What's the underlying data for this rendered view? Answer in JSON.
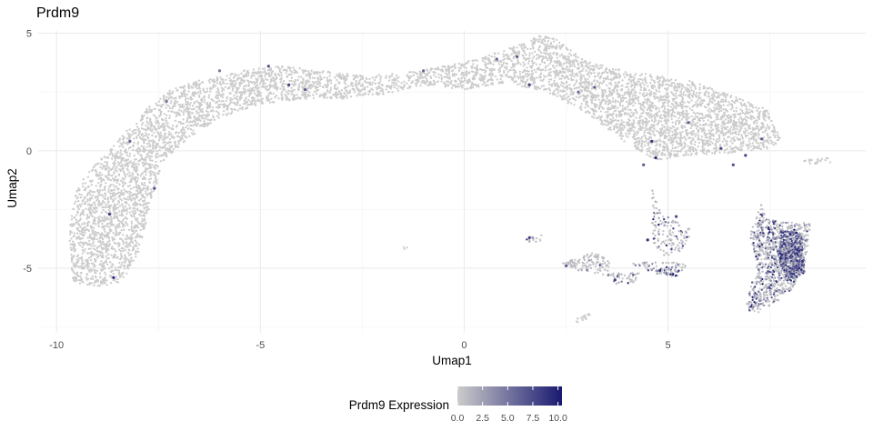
{
  "chart_data": {
    "type": "scatter",
    "title": "Prdm9",
    "xlabel": "Umap1",
    "ylabel": "Umap2",
    "xlim": [
      -10.45,
      9.85
    ],
    "ylim": [
      -7.75,
      5.1
    ],
    "x_ticks": [
      -10,
      -5,
      0,
      5
    ],
    "x_tick_labels": [
      "-10",
      "-5",
      "0",
      "5"
    ],
    "y_ticks": [
      -5,
      0,
      5
    ],
    "y_tick_labels": [
      "-5",
      "0",
      "5"
    ],
    "x_minor_gridlines": [
      -7.5,
      -2.5,
      2.5,
      7.5
    ],
    "y_minor_gridlines": [
      -7.5,
      -2.5,
      2.5
    ],
    "grid": true,
    "legend": {
      "title": "Prdm9 Expression",
      "position": "bottom",
      "type": "colorbar",
      "range": [
        0,
        10.4
      ],
      "tick_values": [
        0,
        2.5,
        5,
        7.5,
        10
      ],
      "tick_labels": [
        "0.0",
        "2.5",
        "5.0",
        "7.5",
        "10.0"
      ],
      "color_low": "#cccccc",
      "color_high": "#191970"
    },
    "colors": {
      "background_point": "#cccccc",
      "expression_low": "#cccccc",
      "expression_high": "#191970",
      "gridline": "#ebebeb"
    },
    "point_regions": [
      {
        "name": "main-arc",
        "points": [
          [
            -9.6,
            -5.6
          ],
          [
            -9.7,
            -3.5
          ],
          [
            -9.5,
            -1.5
          ],
          [
            -9.0,
            -0.5
          ],
          [
            -8.4,
            0.6
          ],
          [
            -7.8,
            1.8
          ],
          [
            -7.2,
            2.6
          ],
          [
            -6.5,
            3.0
          ],
          [
            -5.5,
            3.4
          ],
          [
            -4.5,
            3.6
          ],
          [
            -3.5,
            3.4
          ],
          [
            -2.5,
            3.2
          ],
          [
            -1.5,
            3.3
          ],
          [
            -0.5,
            3.6
          ],
          [
            0.5,
            4.0
          ],
          [
            1.5,
            4.6
          ],
          [
            1.8,
            4.9
          ],
          [
            2.2,
            4.8
          ],
          [
            3.0,
            3.8
          ],
          [
            4.0,
            3.4
          ],
          [
            5.5,
            3.0
          ],
          [
            6.5,
            2.4
          ],
          [
            7.4,
            1.8
          ],
          [
            7.8,
            0.5
          ],
          [
            7.5,
            0.1
          ],
          [
            6.5,
            -0.1
          ],
          [
            5.5,
            -0.2
          ],
          [
            4.7,
            -0.4
          ],
          [
            4.0,
            0.3
          ],
          [
            3.0,
            1.6
          ],
          [
            2.0,
            2.5
          ],
          [
            1.0,
            2.9
          ],
          [
            0.0,
            2.6
          ],
          [
            -1.0,
            2.8
          ],
          [
            -2.0,
            2.4
          ],
          [
            -3.0,
            2.2
          ],
          [
            -4.0,
            2.2
          ],
          [
            -5.0,
            2.0
          ],
          [
            -6.0,
            1.4
          ],
          [
            -6.8,
            0.5
          ],
          [
            -7.4,
            -0.5
          ],
          [
            -7.6,
            -1.8
          ],
          [
            -7.8,
            -3.0
          ],
          [
            -8.0,
            -4.4
          ],
          [
            -8.4,
            -5.6
          ],
          [
            -9.0,
            -5.8
          ]
        ],
        "count": 6500,
        "weight": 0.0
      },
      {
        "name": "right-cluster",
        "points": [
          [
            7.4,
            -2.9
          ],
          [
            7.9,
            -3.0
          ],
          [
            8.5,
            -3.1
          ],
          [
            8.4,
            -4.6
          ],
          [
            8.1,
            -5.8
          ],
          [
            7.5,
            -6.7
          ],
          [
            7.2,
            -6.9
          ],
          [
            6.9,
            -6.8
          ],
          [
            7.0,
            -6.0
          ],
          [
            7.2,
            -4.8
          ],
          [
            7.0,
            -3.6
          ],
          [
            7.3,
            -2.2
          ]
        ],
        "count": 900,
        "weight": 0.35
      },
      {
        "name": "right-cluster-core",
        "points": [
          [
            7.75,
            -3.4
          ],
          [
            8.3,
            -3.5
          ],
          [
            8.35,
            -5.2
          ],
          [
            7.95,
            -5.6
          ],
          [
            7.7,
            -4.6
          ]
        ],
        "count": 500,
        "weight": 0.85
      },
      {
        "name": "mid-cluster-a",
        "points": [
          [
            4.6,
            -1.4
          ],
          [
            4.8,
            -2.6
          ],
          [
            5.3,
            -3.1
          ],
          [
            5.6,
            -3.4
          ],
          [
            5.4,
            -4.2
          ],
          [
            4.9,
            -4.5
          ],
          [
            4.6,
            -3.8
          ]
        ],
        "count": 140,
        "weight": 0.2
      },
      {
        "name": "mid-cluster-b",
        "points": [
          [
            4.1,
            -4.8
          ],
          [
            4.8,
            -4.7
          ],
          [
            5.5,
            -4.8
          ],
          [
            5.2,
            -5.4
          ],
          [
            4.6,
            -5.2
          ]
        ],
        "count": 90,
        "weight": 0.25
      },
      {
        "name": "mid-cluster-c",
        "points": [
          [
            2.4,
            -4.8
          ],
          [
            3.2,
            -4.3
          ],
          [
            3.7,
            -4.8
          ],
          [
            3.5,
            -5.3
          ],
          [
            2.8,
            -5.1
          ]
        ],
        "count": 110,
        "weight": 0.1
      },
      {
        "name": "mid-cluster-d",
        "points": [
          [
            3.5,
            -5.2
          ],
          [
            4.3,
            -5.2
          ],
          [
            4.4,
            -5.6
          ],
          [
            3.7,
            -5.8
          ]
        ],
        "count": 45,
        "weight": 0.3
      },
      {
        "name": "small-cluster-e",
        "points": [
          [
            1.5,
            -3.7
          ],
          [
            1.9,
            -3.6
          ],
          [
            1.9,
            -3.9
          ],
          [
            1.5,
            -3.9
          ]
        ],
        "count": 14,
        "weight": 0.35
      },
      {
        "name": "small-cluster-f",
        "points": [
          [
            2.7,
            -7.2
          ],
          [
            3.1,
            -6.9
          ],
          [
            3.1,
            -7.1
          ],
          [
            2.7,
            -7.4
          ]
        ],
        "count": 18,
        "weight": 0.0
      },
      {
        "name": "small-cluster-g",
        "points": [
          [
            8.3,
            -0.4
          ],
          [
            9.0,
            -0.3
          ],
          [
            9.0,
            -0.5
          ],
          [
            8.3,
            -0.6
          ]
        ],
        "count": 22,
        "weight": 0.0
      },
      {
        "name": "small-cluster-h",
        "points": [
          [
            -1.5,
            -4.1
          ],
          [
            -1.4,
            -4.1
          ],
          [
            -1.4,
            -4.2
          ],
          [
            -1.5,
            -4.2
          ]
        ],
        "count": 3,
        "weight": 0.0
      }
    ],
    "highlighted_points": [
      {
        "x": -8.6,
        "y": -5.4,
        "v": 9.5
      },
      {
        "x": -8.7,
        "y": -2.7,
        "v": 8.5
      },
      {
        "x": -7.6,
        "y": -1.6,
        "v": 7.0
      },
      {
        "x": -8.2,
        "y": 0.4,
        "v": 6.0
      },
      {
        "x": -7.3,
        "y": 2.1,
        "v": 5.0
      },
      {
        "x": -6.0,
        "y": 3.4,
        "v": 5.0
      },
      {
        "x": -4.8,
        "y": 3.6,
        "v": 7.5
      },
      {
        "x": -4.3,
        "y": 2.8,
        "v": 8.0
      },
      {
        "x": -3.9,
        "y": 2.6,
        "v": 6.5
      },
      {
        "x": -1.0,
        "y": 3.4,
        "v": 6.0
      },
      {
        "x": 0.8,
        "y": 3.9,
        "v": 6.0
      },
      {
        "x": 1.3,
        "y": 4.0,
        "v": 7.0
      },
      {
        "x": 1.6,
        "y": 2.8,
        "v": 8.0
      },
      {
        "x": 2.8,
        "y": 2.5,
        "v": 6.0
      },
      {
        "x": 3.2,
        "y": 2.7,
        "v": 6.5
      },
      {
        "x": 4.6,
        "y": 0.4,
        "v": 8.5
      },
      {
        "x": 4.7,
        "y": -0.3,
        "v": 9.5
      },
      {
        "x": 4.4,
        "y": -0.6,
        "v": 7.0
      },
      {
        "x": 6.3,
        "y": 0.1,
        "v": 7.5
      },
      {
        "x": 6.9,
        "y": -0.2,
        "v": 8.0
      },
      {
        "x": 7.3,
        "y": 0.5,
        "v": 6.5
      },
      {
        "x": 6.6,
        "y": -0.6,
        "v": 7.5
      },
      {
        "x": 5.5,
        "y": 1.2,
        "v": 7.0
      },
      {
        "x": 1.6,
        "y": -3.7,
        "v": 8.0
      },
      {
        "x": 4.5,
        "y": -3.8,
        "v": 9.0
      },
      {
        "x": 4.8,
        "y": -5.1,
        "v": 8.5
      },
      {
        "x": 5.2,
        "y": -2.8,
        "v": 7.5
      },
      {
        "x": 3.7,
        "y": -5.5,
        "v": 8.0
      },
      {
        "x": 2.5,
        "y": -4.9,
        "v": 6.5
      }
    ]
  }
}
